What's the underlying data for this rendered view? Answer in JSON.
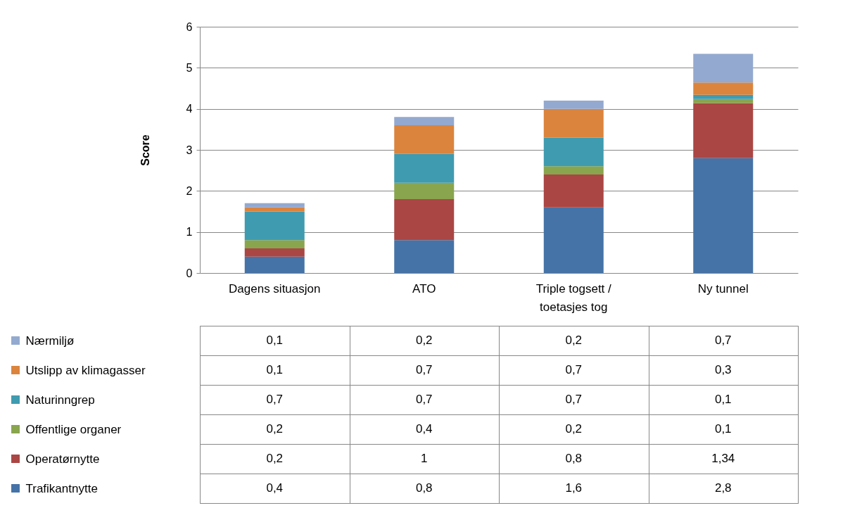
{
  "chart_data": {
    "type": "bar",
    "stacked": true,
    "ylabel": "Score",
    "ylim": [
      0,
      6
    ],
    "yticks": [
      0,
      1,
      2,
      3,
      4,
      5,
      6
    ],
    "grid": "y",
    "legend": "bottom",
    "categories": [
      "Dagens situasjon",
      "ATO",
      "Triple togsett / toetasjes tog",
      "Ny tunnel"
    ],
    "series": [
      {
        "name": "Trafikantnytte",
        "color": "#4573a7",
        "values": [
          0.4,
          0.8,
          1.6,
          2.8
        ],
        "value_labels": [
          "0,4",
          "0,8",
          "1,6",
          "2,8"
        ]
      },
      {
        "name": "Operatørnytte",
        "color": "#aa4644",
        "values": [
          0.2,
          1,
          0.8,
          1.34
        ],
        "value_labels": [
          "0,2",
          "1",
          "0,8",
          "1,34"
        ]
      },
      {
        "name": "Offentlige organer",
        "color": "#89a54e",
        "values": [
          0.2,
          0.4,
          0.2,
          0.1
        ],
        "value_labels": [
          "0,2",
          "0,4",
          "0,2",
          "0,1"
        ]
      },
      {
        "name": "Naturinngrep",
        "color": "#3f9bb0",
        "values": [
          0.7,
          0.7,
          0.7,
          0.1
        ],
        "value_labels": [
          "0,7",
          "0,7",
          "0,7",
          "0,1"
        ]
      },
      {
        "name": "Utslipp av klimagasser",
        "color": "#db843d",
        "values": [
          0.1,
          0.7,
          0.7,
          0.3
        ],
        "value_labels": [
          "0,1",
          "0,7",
          "0,7",
          "0,3"
        ]
      },
      {
        "name": "Nærmiljø",
        "color": "#93a9cf",
        "values": [
          0.1,
          0.2,
          0.2,
          0.7
        ],
        "value_labels": [
          "0,1",
          "0,2",
          "0,2",
          "0,7"
        ]
      }
    ]
  }
}
